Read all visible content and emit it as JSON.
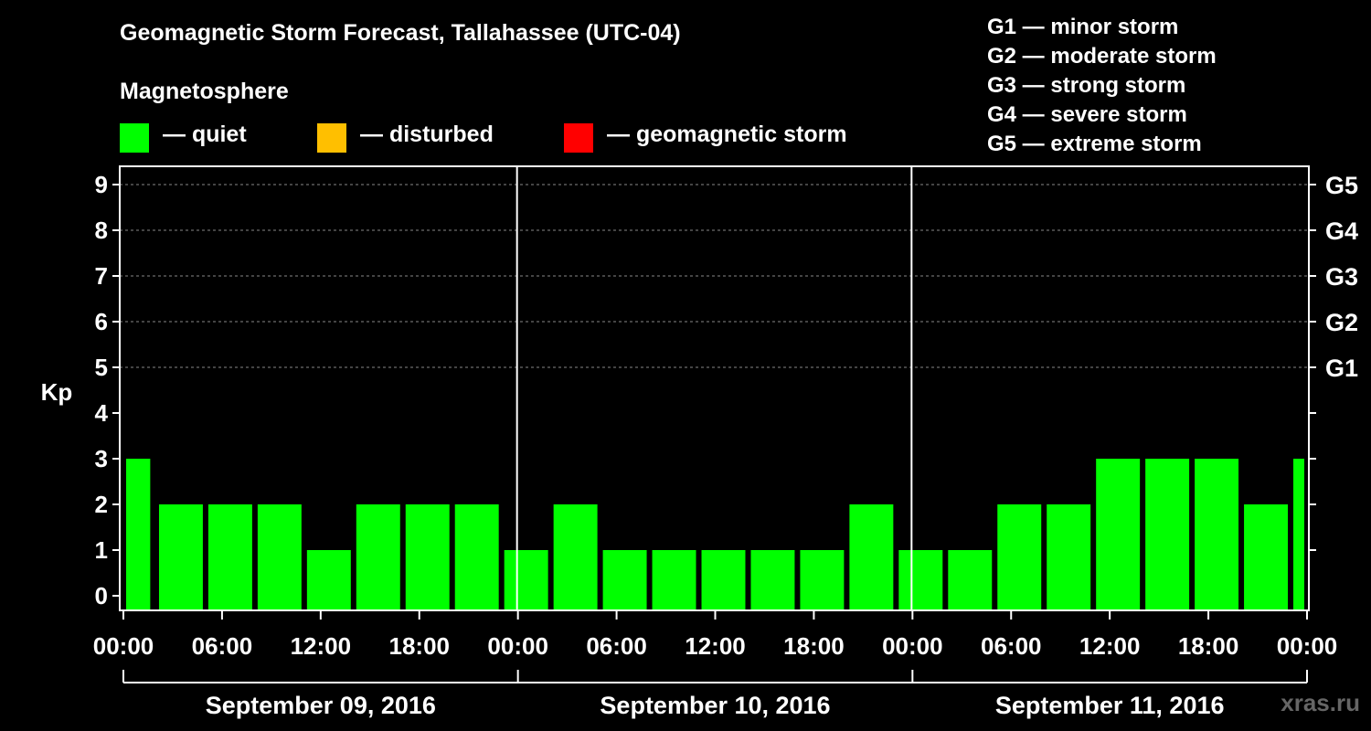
{
  "title": "Geomagnetic Storm Forecast, Tallahassee (UTC-04)",
  "magnetosphere_label": "Magnetosphere",
  "legend": [
    {
      "label": "— quiet",
      "color": "#00ff00"
    },
    {
      "label": "— disturbed",
      "color": "#ffbf00"
    },
    {
      "label": "— geomagnetic storm",
      "color": "#ff0000"
    }
  ],
  "storm_scale": [
    "G1 — minor storm",
    "G2 — moderate storm",
    "G3 — strong storm",
    "G4 — severe storm",
    "G5 — extreme storm"
  ],
  "credit": "xras.ru",
  "chart_data": {
    "type": "bar",
    "ylabel": "Kp",
    "ylim": [
      0,
      9
    ],
    "y_ticks": [
      "0",
      "1",
      "2",
      "3",
      "4",
      "5",
      "6",
      "7",
      "8",
      "9"
    ],
    "right_ticks": [
      {
        "kp": 5,
        "label": "G1"
      },
      {
        "kp": 6,
        "label": "G2"
      },
      {
        "kp": 7,
        "label": "G3"
      },
      {
        "kp": 8,
        "label": "G4"
      },
      {
        "kp": 9,
        "label": "G5"
      }
    ],
    "x_ticks": [
      "00:00",
      "06:00",
      "12:00",
      "18:00",
      "00:00",
      "06:00",
      "12:00",
      "18:00",
      "00:00",
      "06:00",
      "12:00",
      "18:00",
      "00:00"
    ],
    "days": [
      "September 09, 2016",
      "September 10, 2016",
      "September 11, 2016"
    ],
    "bar_color": "#00ff00",
    "bars": [
      {
        "start": 0,
        "end": 1.8,
        "value": 3
      },
      {
        "start": 2,
        "end": 5,
        "value": 2
      },
      {
        "start": 5,
        "end": 8,
        "value": 2
      },
      {
        "start": 8,
        "end": 11,
        "value": 2
      },
      {
        "start": 11,
        "end": 14,
        "value": 1
      },
      {
        "start": 14,
        "end": 17,
        "value": 2
      },
      {
        "start": 17,
        "end": 20,
        "value": 2
      },
      {
        "start": 20,
        "end": 23,
        "value": 2
      },
      {
        "start": 23,
        "end": 26,
        "value": 1
      },
      {
        "start": 26,
        "end": 29,
        "value": 2
      },
      {
        "start": 29,
        "end": 32,
        "value": 1
      },
      {
        "start": 32,
        "end": 35,
        "value": 1
      },
      {
        "start": 35,
        "end": 38,
        "value": 1
      },
      {
        "start": 38,
        "end": 41,
        "value": 1
      },
      {
        "start": 41,
        "end": 44,
        "value": 1
      },
      {
        "start": 44,
        "end": 47,
        "value": 2
      },
      {
        "start": 47,
        "end": 50,
        "value": 1
      },
      {
        "start": 50,
        "end": 53,
        "value": 1
      },
      {
        "start": 53,
        "end": 56,
        "value": 2
      },
      {
        "start": 56,
        "end": 59,
        "value": 2
      },
      {
        "start": 59,
        "end": 62,
        "value": 3
      },
      {
        "start": 62,
        "end": 65,
        "value": 3
      },
      {
        "start": 65,
        "end": 68,
        "value": 3
      },
      {
        "start": 68,
        "end": 71,
        "value": 2
      },
      {
        "start": 71,
        "end": 72,
        "value": 3
      }
    ]
  }
}
